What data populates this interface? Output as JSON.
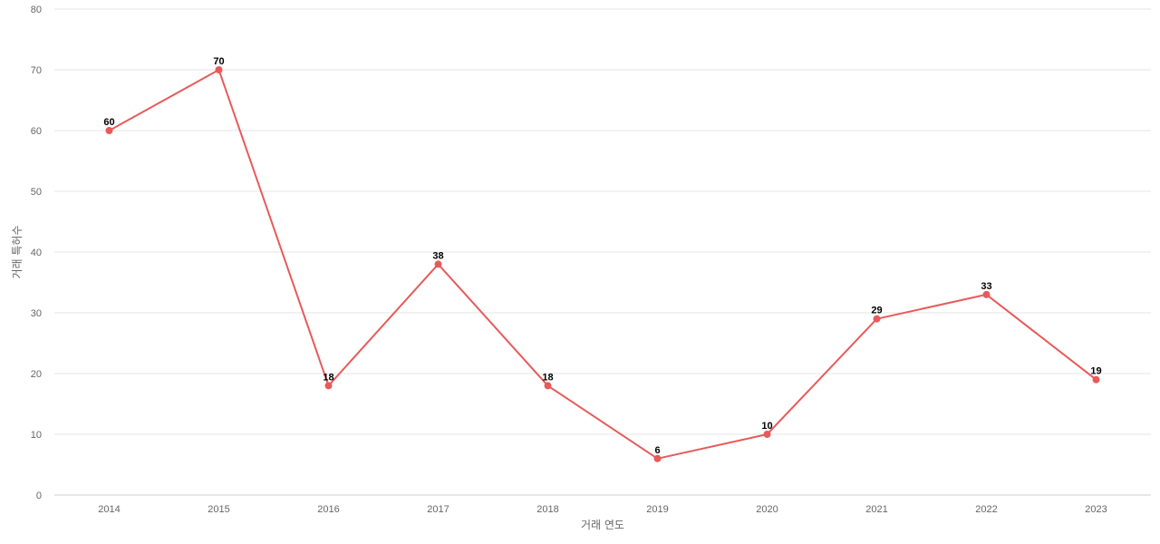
{
  "chart_data": {
    "type": "line",
    "title": "",
    "xlabel": "거래 연도",
    "ylabel": "거래 특허수",
    "categories": [
      "2014",
      "2015",
      "2016",
      "2017",
      "2018",
      "2019",
      "2020",
      "2021",
      "2022",
      "2023"
    ],
    "series": [
      {
        "values": [
          60,
          70,
          18,
          38,
          18,
          6,
          10,
          29,
          33,
          19
        ]
      }
    ],
    "ylim": [
      0,
      80
    ],
    "yticks": [
      0,
      10,
      20,
      30,
      40,
      50,
      60,
      70,
      80
    ],
    "grid": true,
    "data_labels": true,
    "legend": "none",
    "colors": {
      "line": "#e85a5a",
      "grid": "#e6e6e6"
    }
  }
}
